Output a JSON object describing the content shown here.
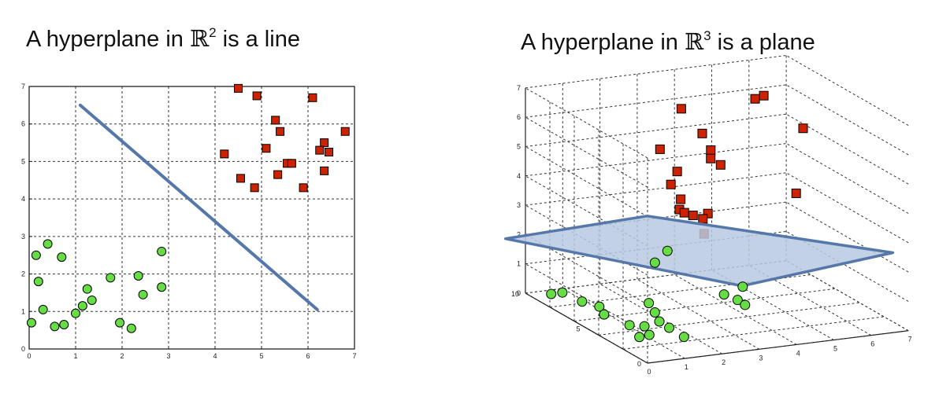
{
  "left_panel": {
    "title_pre": "A hyperplane in ",
    "title_space": "ℝ",
    "title_dim": "2",
    "title_post": " is a line"
  },
  "right_panel": {
    "title_pre": "A hyperplane in ",
    "title_space": "ℝ",
    "title_dim": "3",
    "title_post": " is a plane"
  },
  "colors": {
    "class_a_fill": "#cc2200",
    "class_b_fill": "#66dd44",
    "hyperplane": "#5577aa",
    "plane_fill": "#b9c9e2"
  },
  "chart_data": [
    {
      "type": "scatter",
      "title": "A hyperplane in ℝ2 is a line",
      "xlim": [
        0,
        7
      ],
      "ylim": [
        0,
        7
      ],
      "x_ticks": [
        "0",
        "1",
        "2",
        "3",
        "4",
        "5",
        "6",
        "7"
      ],
      "y_ticks": [
        "0",
        "1",
        "2",
        "3",
        "4",
        "5",
        "6",
        "7"
      ],
      "grid": true,
      "series": [
        {
          "marker": "square",
          "color": "#cc2200",
          "points": [
            [
              4.5,
              6.95
            ],
            [
              4.9,
              6.75
            ],
            [
              6.1,
              6.7
            ],
            [
              5.3,
              6.1
            ],
            [
              5.4,
              5.8
            ],
            [
              6.8,
              5.8
            ],
            [
              6.35,
              5.5
            ],
            [
              6.25,
              5.3
            ],
            [
              6.45,
              5.25
            ],
            [
              5.1,
              5.35
            ],
            [
              4.2,
              5.2
            ],
            [
              5.55,
              4.95
            ],
            [
              5.65,
              4.95
            ],
            [
              5.35,
              4.65
            ],
            [
              6.35,
              4.75
            ],
            [
              4.55,
              4.55
            ],
            [
              4.85,
              4.3
            ],
            [
              5.9,
              4.3
            ]
          ]
        },
        {
          "marker": "circle",
          "color": "#66dd44",
          "points": [
            [
              0.4,
              2.8
            ],
            [
              0.15,
              2.5
            ],
            [
              0.7,
              2.45
            ],
            [
              2.85,
              2.6
            ],
            [
              0.2,
              1.8
            ],
            [
              1.75,
              1.9
            ],
            [
              2.35,
              1.95
            ],
            [
              1.25,
              1.6
            ],
            [
              2.85,
              1.65
            ],
            [
              2.45,
              1.45
            ],
            [
              1.35,
              1.3
            ],
            [
              1.15,
              1.15
            ],
            [
              0.3,
              1.05
            ],
            [
              1.0,
              0.95
            ],
            [
              0.05,
              0.7
            ],
            [
              0.55,
              0.6
            ],
            [
              0.75,
              0.65
            ],
            [
              1.95,
              0.7
            ],
            [
              2.2,
              0.55
            ]
          ]
        }
      ],
      "line": {
        "x": [
          1.1,
          6.2
        ],
        "y": [
          6.5,
          1.05
        ]
      }
    },
    {
      "type": "scatter",
      "title": "A hyperplane in ℝ3 is a plane",
      "xlim": [
        0,
        7
      ],
      "ylim": [
        0,
        10
      ],
      "zlim": [
        0,
        7
      ],
      "x_ticks": [
        "0",
        "1",
        "2",
        "3",
        "4",
        "5",
        "6",
        "7"
      ],
      "y_ticks": [
        "0",
        "5",
        "10"
      ],
      "z_ticks": [
        "0",
        "1",
        "2",
        "3",
        "4",
        "5",
        "6",
        "7"
      ],
      "grid": true,
      "series": [
        {
          "marker": "square",
          "color": "#cc2200",
          "points": [
            [
              6.0,
              9.5,
              5.8
            ],
            [
              6.2,
              9.4,
              5.9
            ],
            [
              6.6,
              7.4,
              5.2
            ],
            [
              3.2,
              7.0,
              6.5
            ],
            [
              3.5,
              6.2,
              5.8
            ],
            [
              3.5,
              5.5,
              5.4
            ],
            [
              3.4,
              5.2,
              5.2
            ],
            [
              3.6,
              5.0,
              5.0
            ],
            [
              2.3,
              6.0,
              5.5
            ],
            [
              2.5,
              5.2,
              4.9
            ],
            [
              2.2,
              4.8,
              4.6
            ],
            [
              2.3,
              4.3,
              4.2
            ],
            [
              2.1,
              3.8,
              4.0
            ],
            [
              2.2,
              3.7,
              3.9
            ],
            [
              2.4,
              3.6,
              3.8
            ],
            [
              2.6,
              3.4,
              3.7
            ],
            [
              2.8,
              3.6,
              3.8
            ],
            [
              2.5,
              3.0,
              3.3
            ],
            [
              5.3,
              4.0,
              4.0
            ]
          ]
        },
        {
          "marker": "circle",
          "color": "#66dd44",
          "points": [
            [
              2.5,
              6.0,
              2.0
            ],
            [
              2.0,
              5.5,
              1.8
            ],
            [
              3.2,
              3.5,
              1.0
            ],
            [
              3.4,
              3.0,
              0.9
            ],
            [
              3.8,
              3.8,
              1.1
            ],
            [
              3.6,
              3.0,
              0.7
            ],
            [
              0.2,
              8.5,
              0.3
            ],
            [
              0.5,
              8.5,
              0.3
            ],
            [
              0.7,
              7.5,
              0.2
            ],
            [
              1.0,
              7.0,
              0.1
            ],
            [
              0.8,
              6.0,
              0.1
            ],
            [
              2.0,
              6.0,
              0.3
            ],
            [
              2.0,
              5.5,
              0.1
            ],
            [
              0.5,
              3.0,
              0.5
            ],
            [
              0.9,
              3.0,
              0.4
            ],
            [
              1.3,
              3.0,
              0.5
            ],
            [
              1.5,
              2.8,
              0.3
            ],
            [
              0.6,
              2.5,
              0.2
            ],
            [
              0.9,
              2.6,
              0.2
            ],
            [
              1.7,
              2.2,
              0.1
            ]
          ]
        }
      ],
      "plane_z": 2.0
    }
  ]
}
